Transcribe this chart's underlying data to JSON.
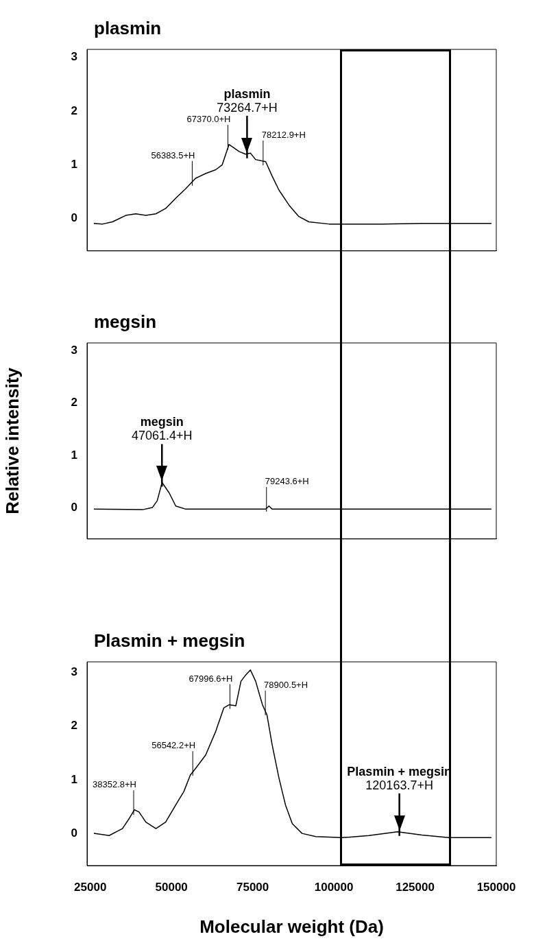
{
  "chart_data": [
    {
      "type": "line",
      "title": "plasmin",
      "color": "#000000",
      "xlim": [
        24000,
        150000
      ],
      "ylim": [
        -0.6,
        3.15
      ],
      "xticks": [
        25000,
        50000,
        75000,
        100000,
        125000,
        150000
      ],
      "yticks": [
        0,
        1,
        2,
        3
      ],
      "tick_labels": "y",
      "x": [
        26100,
        28800,
        31800,
        33900,
        35900,
        39000,
        42100,
        45200,
        48200,
        51300,
        54400,
        57400,
        60500,
        63600,
        65600,
        67700,
        68700,
        70800,
        72800,
        74300,
        75900,
        79000,
        81000,
        83100,
        86200,
        89200,
        92300,
        98500,
        114900,
        127100,
        148500
      ],
      "values": [
        -0.09,
        -0.1,
        -0.06,
        0,
        0.06,
        0.09,
        0.06,
        0.09,
        0.19,
        0.38,
        0.56,
        0.75,
        0.84,
        0.91,
        1.0,
        1.38,
        1.34,
        1.25,
        1.2,
        1.22,
        1.1,
        1.06,
        0.79,
        0.53,
        0.25,
        0.04,
        -0.06,
        -0.1,
        -0.1,
        -0.09,
        -0.09
      ],
      "annotations": [
        {
          "text": "plasmin\n73264.7+H",
          "x": 73264.7,
          "y": 1.2
        },
        {
          "text": "67370.0+H",
          "x": 67370.0,
          "y": 1.36
        },
        {
          "text": "56383.5+H",
          "x": 56383.5,
          "y": 0.69
        },
        {
          "text": "78212.9+H",
          "x": 78212.9,
          "y": 1.07
        }
      ]
    },
    {
      "type": "line",
      "title": "megsin",
      "ylabel": "Relative intensity",
      "color": "#000000",
      "xlim": [
        24000,
        150000
      ],
      "ylim": [
        -0.6,
        3.15
      ],
      "xticks": [
        25000,
        50000,
        75000,
        100000,
        125000,
        150000
      ],
      "yticks": [
        0,
        1,
        2,
        3
      ],
      "tick_labels": "y",
      "x": [
        26100,
        41100,
        44100,
        45600,
        47100,
        49300,
        51300,
        54400,
        79000,
        80000,
        81000,
        110800,
        148500
      ],
      "values": [
        -0.03,
        -0.04,
        0,
        0.13,
        0.48,
        0.28,
        0.03,
        -0.03,
        -0.03,
        0.03,
        -0.03,
        -0.03,
        -0.03
      ],
      "annotations": [
        {
          "text": "megsin\n47061.4+H",
          "x": 47061.4,
          "y": 0.48
        },
        {
          "text": "79243.6+H",
          "x": 79243.6,
          "y": 0
        }
      ]
    },
    {
      "type": "line",
      "title": "Plasmin + megsin",
      "xlabel": "Molecular weight (Da)",
      "color": "#000000",
      "xlim": [
        24000,
        150000
      ],
      "ylim": [
        -0.6,
        3.2
      ],
      "xticks": [
        25000,
        50000,
        75000,
        100000,
        125000,
        150000
      ],
      "yticks": [
        0,
        1,
        2,
        3
      ],
      "x": [
        26100,
        30800,
        34900,
        37000,
        38600,
        40000,
        42100,
        45200,
        48200,
        51300,
        53800,
        55800,
        57400,
        60500,
        63600,
        66100,
        67700,
        69800,
        71400,
        72800,
        74300,
        75900,
        78000,
        79400,
        81000,
        83100,
        85100,
        87200,
        90200,
        94400,
        102600,
        110800,
        119600,
        127100,
        135400,
        148500
      ],
      "values": [
        0,
        -0.04,
        0.09,
        0.28,
        0.44,
        0.4,
        0.21,
        0.09,
        0.21,
        0.53,
        0.78,
        1.09,
        1.21,
        1.46,
        1.9,
        2.34,
        2.4,
        2.38,
        2.84,
        2.95,
        3.05,
        2.84,
        2.4,
        2.21,
        1.65,
        1.03,
        0.53,
        0.18,
        0,
        -0.06,
        -0.08,
        -0.04,
        0.03,
        -0.03,
        -0.08,
        -0.08
      ],
      "annotations": [
        {
          "text": "Plasmin + megsin\n120163.7+H",
          "x": 120163.7,
          "y": 0.03
        },
        {
          "text": "38352.8+H",
          "x": 38352.8,
          "y": 0.42
        },
        {
          "text": "56542.2+H",
          "x": 56542.2,
          "y": 1.15
        },
        {
          "text": "67996.6+H",
          "x": 67996.6,
          "y": 2.4
        },
        {
          "text": "78900.5+H",
          "x": 78900.5,
          "y": 2.28
        }
      ]
    }
  ]
}
